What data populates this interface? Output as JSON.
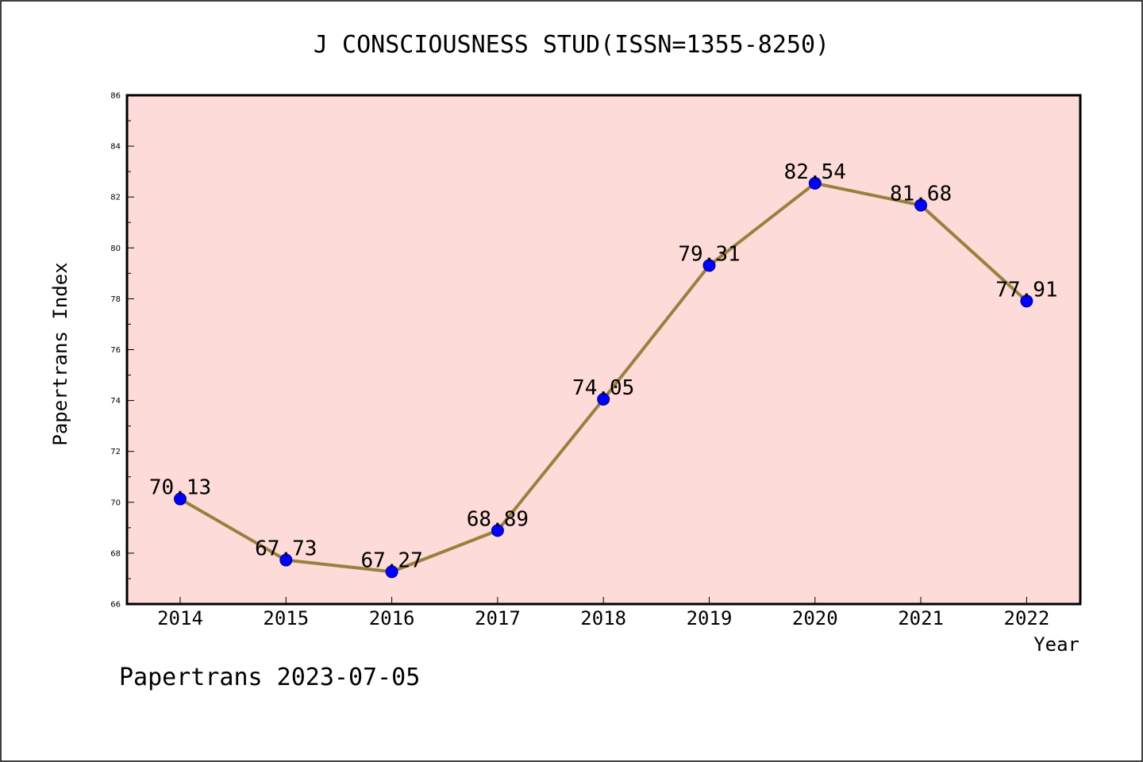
{
  "colors": {
    "plot_background": "#fddbd8",
    "line": "#9a803f",
    "marker": "#0000ff",
    "marker_edge": "#000080"
  },
  "footer": "Papertrans 2023-07-05",
  "chart_data": {
    "type": "line",
    "title": "J CONSCIOUSNESS STUD(ISSN=1355-8250)",
    "xlabel": "Year",
    "ylabel": "Papertrans Index",
    "x": [
      "2014",
      "2015",
      "2016",
      "2017",
      "2018",
      "2019",
      "2020",
      "2021",
      "2022"
    ],
    "series": [
      {
        "values": [
          70.13,
          67.73,
          67.27,
          68.89,
          74.05,
          79.31,
          82.54,
          81.68,
          77.91
        ],
        "labels": [
          "70.13",
          "67.73",
          "67.27",
          "68.89",
          "74.05",
          "79.31",
          "82.54",
          "81.68",
          "77.91"
        ]
      }
    ],
    "ylim": [
      66,
      86
    ],
    "yticks": [
      "66",
      "68",
      "70",
      "72",
      "74",
      "76",
      "78",
      "80",
      "82",
      "84",
      "86"
    ],
    "grid": false,
    "legend": "none"
  }
}
